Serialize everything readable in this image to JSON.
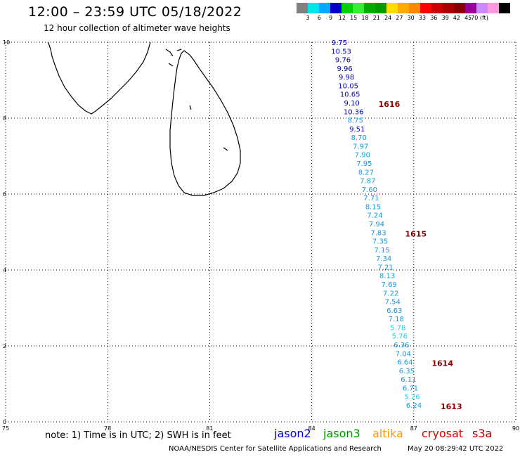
{
  "header": {
    "title": "12:00 – 23:59 UTC 05/18/2022",
    "subtitle": "12 hour collection of altimeter wave heights"
  },
  "legend": {
    "colors": [
      "#7f7f7f",
      "#00e5e5",
      "#00aaff",
      "#0000cc",
      "#00d000",
      "#33ee33",
      "#00aa00",
      "#009900",
      "#ffdd00",
      "#ffaa00",
      "#ff8800",
      "#ff0000",
      "#cc0000",
      "#aa0000",
      "#880000",
      "#990099",
      "#cc88ff",
      "#ff99dd",
      "#000000"
    ],
    "labels": [
      "3",
      "6",
      "9",
      "12",
      "15",
      "18",
      "21",
      "24",
      "27",
      "30",
      "33",
      "36",
      "39",
      "42",
      "45",
      "70 (ft)"
    ]
  },
  "axes": {
    "x_ticks": [
      "75",
      "78",
      "81",
      "84",
      "87",
      "90"
    ],
    "y_ticks": [
      "0",
      "2",
      "4",
      "6",
      "8",
      "10"
    ]
  },
  "wave_heights": [
    {
      "value": "9.75",
      "color": "#0000aa"
    },
    {
      "value": "10.53",
      "color": "#0000aa"
    },
    {
      "value": "9.76",
      "color": "#0000aa"
    },
    {
      "value": "9.96",
      "color": "#0000aa"
    },
    {
      "value": "9.98",
      "color": "#0000aa"
    },
    {
      "value": "10.05",
      "color": "#0000aa"
    },
    {
      "value": "10.65",
      "color": "#0000aa"
    },
    {
      "value": "9.10",
      "color": "#0000aa"
    },
    {
      "value": "10.36",
      "color": "#0000aa"
    },
    {
      "value": "8.75",
      "color": "#1199dd"
    },
    {
      "value": "9.51",
      "color": "#0000aa"
    },
    {
      "value": "8.70",
      "color": "#1199dd"
    },
    {
      "value": "7.97",
      "color": "#1199dd"
    },
    {
      "value": "7.90",
      "color": "#1199dd"
    },
    {
      "value": "7.95",
      "color": "#1199dd"
    },
    {
      "value": "8.27",
      "color": "#1199dd"
    },
    {
      "value": "7.87",
      "color": "#1199dd"
    },
    {
      "value": "7.60",
      "color": "#1199dd"
    },
    {
      "value": "7.71",
      "color": "#1199dd"
    },
    {
      "value": "8.15",
      "color": "#1199dd"
    },
    {
      "value": "7.24",
      "color": "#1199dd"
    },
    {
      "value": "7.94",
      "color": "#1199dd"
    },
    {
      "value": "7.83",
      "color": "#1199dd"
    },
    {
      "value": "7.35",
      "color": "#1199dd"
    },
    {
      "value": "7.15",
      "color": "#1199dd"
    },
    {
      "value": "7.34",
      "color": "#1199dd"
    },
    {
      "value": "7.21",
      "color": "#1199dd"
    },
    {
      "value": "8.13",
      "color": "#1199dd"
    },
    {
      "value": "7.69",
      "color": "#1199dd"
    },
    {
      "value": "7.22",
      "color": "#1199dd"
    },
    {
      "value": "7.54",
      "color": "#1199dd"
    },
    {
      "value": "6.63",
      "color": "#1199dd"
    },
    {
      "value": "7.18",
      "color": "#1199dd"
    },
    {
      "value": "5.78",
      "color": "#22ccdd"
    },
    {
      "value": "5.76",
      "color": "#22ccdd"
    },
    {
      "value": "6.36",
      "color": "#1199dd"
    },
    {
      "value": "7.04",
      "color": "#1199dd"
    },
    {
      "value": "6.64",
      "color": "#1199dd"
    },
    {
      "value": "6.35",
      "color": "#1199dd"
    },
    {
      "value": "6.11",
      "color": "#1199dd"
    },
    {
      "value": "6.71",
      "color": "#1199dd"
    },
    {
      "value": "5.26",
      "color": "#22ccdd"
    },
    {
      "value": "6.24",
      "color": "#1199dd"
    }
  ],
  "time_markers": [
    {
      "value": "1616",
      "color": "#880000"
    },
    {
      "value": "1615",
      "color": "#880000"
    },
    {
      "value": "1614",
      "color": "#880000"
    },
    {
      "value": "1613",
      "color": "#880000"
    }
  ],
  "footer": {
    "note": "note: 1) Time is in UTC; 2) SWH is in feet",
    "satellites": [
      {
        "name": "jason2",
        "color": "#0000dd"
      },
      {
        "name": "jason3",
        "color": "#009900"
      },
      {
        "name": "altika",
        "color": "#ff9900"
      },
      {
        "name": "cryosat",
        "color": "#dd0000"
      },
      {
        "name": "s3a",
        "color": "#aa0000"
      }
    ],
    "credit": "NOAA/NESDIS Center for Satellite Applications and Research",
    "timestamp": "May 20 08:29:42 UTC 2022"
  }
}
